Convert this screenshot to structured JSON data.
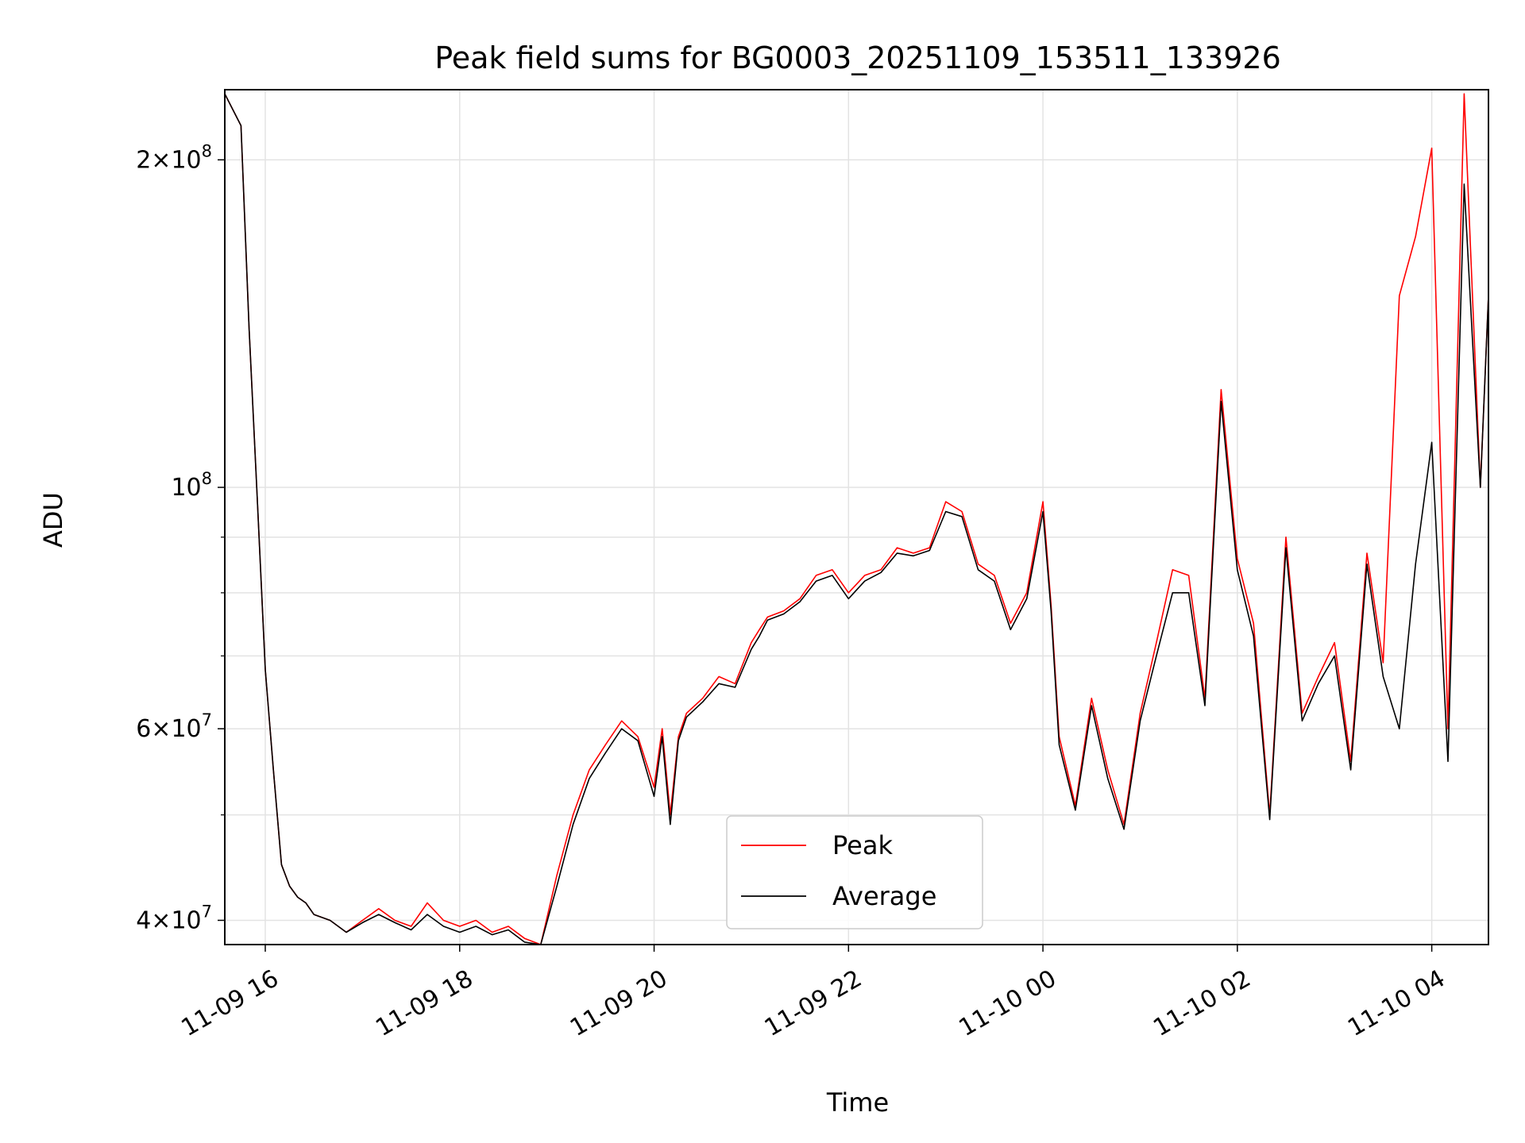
{
  "chart_data": {
    "type": "line",
    "title": "Peak field sums for BG0003_20251109_153511_133926",
    "xlabel": "Time",
    "ylabel": "ADU",
    "y_scale": "log",
    "xlim": [
      "2025-11-09T15:35",
      "2025-11-10T04:35"
    ],
    "ylim": [
      38000000,
      232000000
    ],
    "grid": true,
    "legend_position": "lower-center",
    "x_ticks": [
      {
        "t": "2025-11-09T16:00",
        "label": "11-09 16"
      },
      {
        "t": "2025-11-09T18:00",
        "label": "11-09 18"
      },
      {
        "t": "2025-11-09T20:00",
        "label": "11-09 20"
      },
      {
        "t": "2025-11-09T22:00",
        "label": "11-09 22"
      },
      {
        "t": "2025-11-10T00:00",
        "label": "11-10 00"
      },
      {
        "t": "2025-11-10T02:00",
        "label": "11-10 02"
      },
      {
        "t": "2025-11-10T04:00",
        "label": "11-10 04"
      }
    ],
    "y_ticks_major": [
      {
        "v": 40000000,
        "base": "4",
        "exp": "7"
      },
      {
        "v": 60000000,
        "base": "6",
        "exp": "7"
      },
      {
        "v": 100000000,
        "base": "",
        "exp": "8"
      },
      {
        "v": 200000000,
        "base": "2",
        "exp": "8"
      }
    ],
    "y_ticks_minor": [
      50000000,
      70000000,
      80000000,
      90000000
    ],
    "x": [
      "2025-11-09T15:35",
      "2025-11-09T15:45",
      "2025-11-09T15:50",
      "2025-11-09T15:55",
      "2025-11-09T16:00",
      "2025-11-09T16:05",
      "2025-11-09T16:10",
      "2025-11-09T16:15",
      "2025-11-09T16:20",
      "2025-11-09T16:25",
      "2025-11-09T16:30",
      "2025-11-09T16:40",
      "2025-11-09T16:50",
      "2025-11-09T17:00",
      "2025-11-09T17:10",
      "2025-11-09T17:20",
      "2025-11-09T17:30",
      "2025-11-09T17:40",
      "2025-11-09T17:50",
      "2025-11-09T18:00",
      "2025-11-09T18:10",
      "2025-11-09T18:20",
      "2025-11-09T18:30",
      "2025-11-09T18:40",
      "2025-11-09T18:50",
      "2025-11-09T19:00",
      "2025-11-09T19:10",
      "2025-11-09T19:20",
      "2025-11-09T19:30",
      "2025-11-09T19:40",
      "2025-11-09T19:50",
      "2025-11-09T20:00",
      "2025-11-09T20:05",
      "2025-11-09T20:10",
      "2025-11-09T20:15",
      "2025-11-09T20:20",
      "2025-11-09T20:30",
      "2025-11-09T20:40",
      "2025-11-09T20:50",
      "2025-11-09T21:00",
      "2025-11-09T21:05",
      "2025-11-09T21:10",
      "2025-11-09T21:20",
      "2025-11-09T21:30",
      "2025-11-09T21:40",
      "2025-11-09T21:50",
      "2025-11-09T22:00",
      "2025-11-09T22:10",
      "2025-11-09T22:20",
      "2025-11-09T22:30",
      "2025-11-09T22:40",
      "2025-11-09T22:50",
      "2025-11-09T23:00",
      "2025-11-09T23:10",
      "2025-11-09T23:20",
      "2025-11-09T23:30",
      "2025-11-09T23:40",
      "2025-11-09T23:50",
      "2025-11-10T00:00",
      "2025-11-10T00:05",
      "2025-11-10T00:10",
      "2025-11-10T00:20",
      "2025-11-10T00:30",
      "2025-11-10T00:40",
      "2025-11-10T00:50",
      "2025-11-10T01:00",
      "2025-11-10T01:10",
      "2025-11-10T01:20",
      "2025-11-10T01:30",
      "2025-11-10T01:40",
      "2025-11-10T01:50",
      "2025-11-10T02:00",
      "2025-11-10T02:10",
      "2025-11-10T02:20",
      "2025-11-10T02:30",
      "2025-11-10T02:40",
      "2025-11-10T02:50",
      "2025-11-10T03:00",
      "2025-11-10T03:10",
      "2025-11-10T03:20",
      "2025-11-10T03:30",
      "2025-11-10T03:40",
      "2025-11-10T03:50",
      "2025-11-10T04:00",
      "2025-11-10T04:10",
      "2025-11-10T04:20",
      "2025-11-10T04:30",
      "2025-11-10T04:35"
    ],
    "series": [
      {
        "name": "Peak",
        "color": "#ff0000",
        "values": [
          230000000,
          215000000,
          140000000,
          98000000,
          68000000,
          55000000,
          45000000,
          43000000,
          42000000,
          41500000,
          40500000,
          40000000,
          39000000,
          40000000,
          41000000,
          40000000,
          39500000,
          41500000,
          40000000,
          39500000,
          40000000,
          39000000,
          39500000,
          38500000,
          38000000,
          44000000,
          50000000,
          55000000,
          58000000,
          61000000,
          59000000,
          53000000,
          60000000,
          50000000,
          59000000,
          62000000,
          64000000,
          67000000,
          66000000,
          72000000,
          74000000,
          76000000,
          77000000,
          79000000,
          83000000,
          84000000,
          80000000,
          83000000,
          84000000,
          88000000,
          87000000,
          88000000,
          97000000,
          95000000,
          85000000,
          83000000,
          75000000,
          80000000,
          97000000,
          78000000,
          59000000,
          51000000,
          64000000,
          55000000,
          49000000,
          62000000,
          72000000,
          84000000,
          83000000,
          64000000,
          123000000,
          86000000,
          75000000,
          50000000,
          90000000,
          62000000,
          67000000,
          72000000,
          56000000,
          87000000,
          69000000,
          150000000,
          170000000,
          205000000,
          60000000,
          230000000,
          100000000,
          150000000
        ]
      },
      {
        "name": "Average",
        "color": "#000000",
        "values": [
          230000000,
          215000000,
          140000000,
          98000000,
          68000000,
          55000000,
          45000000,
          43000000,
          42000000,
          41500000,
          40500000,
          40000000,
          39000000,
          39800000,
          40500000,
          39800000,
          39200000,
          40500000,
          39500000,
          39000000,
          39500000,
          38800000,
          39200000,
          38200000,
          38000000,
          43000000,
          49000000,
          54000000,
          57000000,
          60000000,
          58500000,
          52000000,
          59000000,
          49000000,
          58500000,
          61500000,
          63500000,
          66000000,
          65500000,
          71000000,
          73000000,
          75500000,
          76500000,
          78500000,
          82000000,
          83000000,
          79000000,
          82000000,
          83500000,
          87000000,
          86500000,
          87500000,
          95000000,
          94000000,
          84000000,
          82000000,
          74000000,
          79000000,
          95000000,
          77000000,
          58000000,
          50500000,
          63000000,
          54000000,
          48500000,
          61000000,
          70000000,
          80000000,
          80000000,
          63000000,
          120000000,
          84000000,
          73000000,
          49500000,
          88000000,
          61000000,
          66000000,
          70000000,
          55000000,
          85000000,
          67000000,
          60000000,
          85000000,
          110000000,
          56000000,
          190000000,
          100000000,
          150000000
        ]
      }
    ]
  }
}
